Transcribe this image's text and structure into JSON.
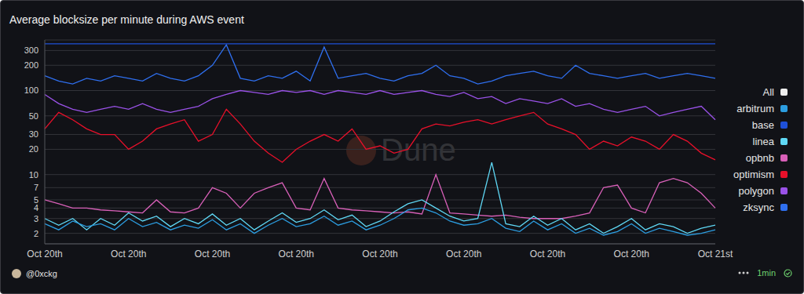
{
  "chart_data": {
    "type": "line",
    "title": "Average blocksize per minute during AWS event",
    "categories": [
      "Oct 20th",
      null,
      null,
      null,
      null,
      null,
      "Oct 20th",
      null,
      null,
      null,
      null,
      null,
      "Oct 20th",
      null,
      null,
      null,
      null,
      null,
      "Oct 20th",
      null,
      null,
      null,
      null,
      null,
      "Oct 20th",
      null,
      null,
      null,
      null,
      null,
      "Oct 20th",
      null,
      null,
      null,
      null,
      null,
      "Oct 20th",
      null,
      null,
      null,
      null,
      null,
      "Oct 20th",
      null,
      null,
      null,
      null,
      null,
      "Oct 21st"
    ],
    "series": [
      {
        "name": "All",
        "color": "#eeeeee",
        "values": [
          null,
          null,
          null,
          null,
          null,
          null,
          null,
          null,
          null,
          null,
          null,
          null,
          null,
          null,
          null,
          null,
          null,
          null,
          null,
          null,
          null,
          null,
          null,
          null,
          null,
          null,
          null,
          null,
          null,
          null,
          null,
          null,
          null,
          null,
          null,
          null,
          null,
          null,
          null,
          null,
          null,
          null,
          null,
          null,
          null,
          null,
          null,
          null,
          null
        ]
      },
      {
        "name": "zksync",
        "color": "#2f6fef",
        "values": [
          150,
          130,
          120,
          140,
          130,
          150,
          140,
          130,
          160,
          140,
          130,
          150,
          200,
          350,
          140,
          130,
          150,
          140,
          170,
          130,
          330,
          140,
          150,
          160,
          140,
          130,
          150,
          160,
          200,
          150,
          140,
          120,
          130,
          150,
          160,
          170,
          150,
          140,
          200,
          160,
          150,
          140,
          150,
          160,
          140,
          150,
          160,
          150,
          140
        ]
      },
      {
        "name": "polygon",
        "color": "#9a52e8",
        "values": [
          90,
          70,
          60,
          55,
          60,
          65,
          60,
          70,
          60,
          55,
          60,
          65,
          80,
          90,
          100,
          95,
          90,
          100,
          95,
          100,
          90,
          100,
          95,
          90,
          100,
          90,
          95,
          100,
          90,
          85,
          95,
          80,
          85,
          70,
          80,
          75,
          70,
          80,
          65,
          70,
          60,
          55,
          60,
          65,
          50,
          55,
          60,
          65,
          45
        ]
      },
      {
        "name": "optimism",
        "color": "#e8102a",
        "values": [
          35,
          55,
          45,
          35,
          30,
          30,
          20,
          25,
          35,
          40,
          45,
          25,
          30,
          60,
          40,
          25,
          18,
          14,
          20,
          25,
          30,
          25,
          35,
          20,
          22,
          18,
          20,
          35,
          40,
          38,
          42,
          45,
          40,
          45,
          50,
          55,
          40,
          35,
          30,
          20,
          25,
          22,
          28,
          25,
          20,
          30,
          25,
          18,
          15
        ]
      },
      {
        "name": "opbnb",
        "color": "#d860b8",
        "values": [
          5,
          4.5,
          4,
          4,
          3.8,
          3.7,
          3.6,
          3.5,
          5,
          3.6,
          3.5,
          4,
          7,
          6,
          4,
          6,
          7,
          8,
          4,
          3.8,
          9,
          4,
          3.8,
          3.7,
          3.6,
          3.5,
          3.6,
          3.4,
          10,
          3.5,
          3.4,
          3.3,
          3.2,
          3.3,
          3.1,
          3,
          3,
          3,
          3.2,
          3.5,
          7,
          7.5,
          4,
          3.5,
          8,
          9,
          8,
          6,
          4
        ]
      },
      {
        "name": "linea",
        "color": "#5fd8f5",
        "values": [
          3,
          2.5,
          3,
          2.2,
          3,
          2.5,
          3.5,
          2.8,
          3.2,
          2.4,
          3,
          2.6,
          3.4,
          2.5,
          3,
          2.2,
          2.8,
          3.5,
          2.7,
          3,
          3.8,
          2.9,
          3.3,
          2.4,
          2.8,
          3.6,
          4.5,
          5,
          4,
          3.2,
          2.8,
          3,
          14,
          2.6,
          2.4,
          3.2,
          2.5,
          3,
          2.2,
          2.6,
          2,
          2.4,
          3,
          2.2,
          2.6,
          2.4,
          2,
          2.3,
          2.5
        ]
      },
      {
        "name": "base",
        "color": "#1e50d8",
        "values": [
          360,
          360,
          360,
          360,
          360,
          360,
          360,
          360,
          360,
          360,
          360,
          360,
          360,
          360,
          360,
          360,
          360,
          360,
          360,
          360,
          360,
          360,
          360,
          360,
          360,
          360,
          360,
          360,
          360,
          360,
          360,
          360,
          360,
          360,
          360,
          360,
          360,
          360,
          360,
          360,
          360,
          360,
          360,
          360,
          360,
          360,
          360,
          360,
          360
        ]
      },
      {
        "name": "arbitrum",
        "color": "#2c9de0",
        "values": [
          2.6,
          2.2,
          2.8,
          2.4,
          2.6,
          2.2,
          3,
          2.4,
          2.7,
          2.2,
          2.5,
          2.3,
          2.9,
          2.2,
          2.6,
          2,
          2.5,
          3,
          2.4,
          2.6,
          3.2,
          2.5,
          2.8,
          2.2,
          2.5,
          3,
          3.8,
          4,
          3.5,
          2.8,
          2.5,
          2.6,
          3,
          2.3,
          2.1,
          2.8,
          2.2,
          2.6,
          2,
          2.3,
          1.9,
          2.1,
          2.6,
          2,
          2.3,
          2.1,
          1.9,
          2,
          2.2
        ]
      }
    ],
    "ylim": [
      1.5,
      400
    ],
    "yticks": [
      2,
      3,
      4,
      5,
      7,
      10,
      20,
      30,
      50,
      100,
      200,
      300
    ],
    "log": "y",
    "grid": true,
    "legend": "right"
  },
  "footer": {
    "author": "@0xckg",
    "refresh": "1min",
    "watermark": "Dune"
  }
}
